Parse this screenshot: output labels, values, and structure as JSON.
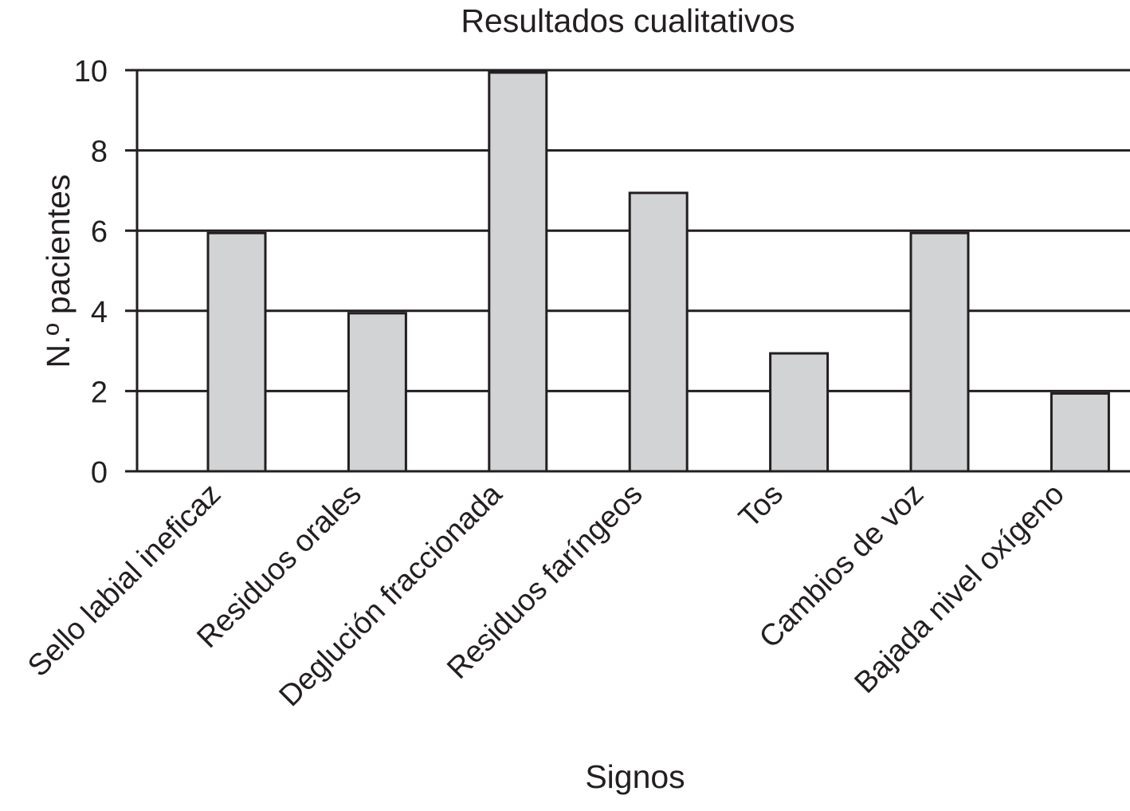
{
  "chart_data": {
    "type": "bar",
    "title": "Resultados cualitativos",
    "xlabel": "Signos",
    "ylabel": "N.º pacientes",
    "categories": [
      "Sello labial ineficaz",
      "Residuos orales",
      "Deglución fraccionada",
      "Residuos faríngeos",
      "Tos",
      "Cambios de voz",
      "Bajada nivel oxígeno"
    ],
    "values": [
      6,
      4,
      10,
      7,
      3,
      6,
      2
    ],
    "ylim": [
      0,
      10
    ],
    "yticks": [
      "0",
      "2",
      "4",
      "6",
      "8",
      "10"
    ],
    "grid": true,
    "bar_color": "#d1d3d4",
    "edge_color": "#231f20"
  }
}
